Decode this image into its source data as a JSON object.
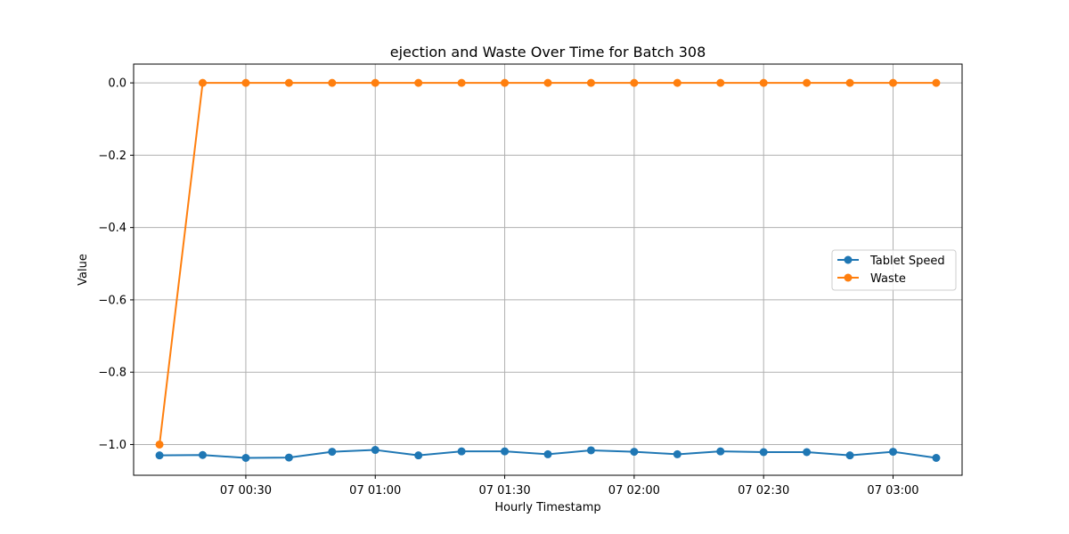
{
  "chart_data": {
    "type": "line",
    "title": "ejection and Waste Over Time for Batch 308",
    "xlabel": "Hourly Timestamp",
    "ylabel": "Value",
    "x": [
      "00:10",
      "00:20",
      "00:30",
      "00:40",
      "00:50",
      "01:00",
      "01:10",
      "01:20",
      "01:30",
      "01:40",
      "01:50",
      "02:00",
      "02:10",
      "02:20",
      "02:30",
      "02:40",
      "02:50",
      "03:00",
      "03:10"
    ],
    "xticks": [
      {
        "value": "00:30",
        "label": "07 00:30"
      },
      {
        "value": "01:00",
        "label": "07 01:00"
      },
      {
        "value": "01:30",
        "label": "07 01:30"
      },
      {
        "value": "02:00",
        "label": "07 02:00"
      },
      {
        "value": "02:30",
        "label": "07 02:30"
      },
      {
        "value": "03:00",
        "label": "07 03:00"
      }
    ],
    "xlim": [
      "00:04",
      "03:16"
    ],
    "ylim": [
      -1.085,
      0.052
    ],
    "yticks": [
      0.0,
      -0.2,
      -0.4,
      -0.6,
      -0.8,
      -1.0
    ],
    "ytick_labels": [
      "0.0",
      "−0.2",
      "−0.4",
      "−0.6",
      "−0.8",
      "−1.0"
    ],
    "grid": true,
    "legend_position": "center-right",
    "series": [
      {
        "name": "Tablet Speed",
        "color": "#1f77b4",
        "marker": "circle",
        "values": [
          -1.03,
          -1.029,
          -1.037,
          -1.036,
          -1.02,
          -1.015,
          -1.03,
          -1.019,
          -1.019,
          -1.027,
          -1.016,
          -1.02,
          -1.027,
          -1.019,
          -1.021,
          -1.021,
          -1.03,
          -1.02,
          -1.037
        ]
      },
      {
        "name": "Waste",
        "color": "#ff7f0e",
        "marker": "circle",
        "values": [
          -1.0,
          0.0,
          0.0,
          0.0,
          0.0,
          0.0,
          0.0,
          0.0,
          0.0,
          0.0,
          0.0,
          0.0,
          0.0,
          0.0,
          0.0,
          0.0,
          0.0,
          0.0,
          0.0
        ]
      }
    ]
  }
}
